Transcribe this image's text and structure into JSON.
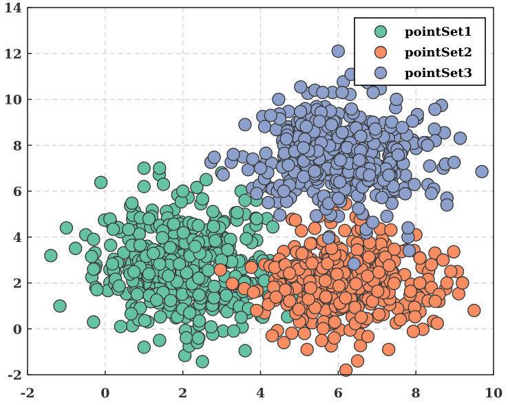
{
  "chart_data": {
    "type": "scatter",
    "xlim": [
      -2,
      10
    ],
    "ylim": [
      -2,
      14
    ],
    "xticks": [
      "-2",
      "0",
      "2",
      "4",
      "6",
      "8",
      "10"
    ],
    "yticks": [
      "-2",
      "0",
      "2",
      "4",
      "6",
      "8",
      "10",
      "12",
      "14"
    ],
    "grid": true,
    "legend_position": "top-right",
    "series": [
      {
        "name": "pointSet1",
        "color": "#66c2a5",
        "distribution": {
          "center": [
            2.0,
            2.7
          ],
          "std": [
            1.1,
            1.35
          ],
          "count": 420
        },
        "points": [
          [
            -1.0,
            4.4
          ],
          [
            -0.5,
            4.1
          ],
          [
            -0.3,
            3.9
          ],
          [
            -0.3,
            2.6
          ],
          [
            -0.3,
            0.3
          ],
          [
            0.4,
            0.1
          ],
          [
            1.0,
            -0.8
          ],
          [
            1.4,
            -0.5
          ],
          [
            1.0,
            7.0
          ],
          [
            1.4,
            7.0
          ],
          [
            1.0,
            6.2
          ],
          [
            1.5,
            6.3
          ],
          [
            2.0,
            6.0
          ],
          [
            2.6,
            6.5
          ],
          [
            3.0,
            6.8
          ],
          [
            3.5,
            6.0
          ],
          [
            3.9,
            4.8
          ],
          [
            3.5,
            0.5
          ],
          [
            4.1,
            2.1
          ],
          [
            2.4,
            -0.4
          ],
          [
            3.6,
            5.6
          ]
        ]
      },
      {
        "name": "pointSet2",
        "color": "#fc8d62",
        "distribution": {
          "center": [
            6.2,
            2.2
          ],
          "std": [
            1.05,
            1.1
          ],
          "count": 420
        },
        "points": [
          [
            6.2,
            -1.8
          ],
          [
            6.5,
            -1.4
          ],
          [
            5.2,
            -0.9
          ],
          [
            7.3,
            -0.9
          ],
          [
            4.6,
            -0.6
          ],
          [
            9.5,
            0.8
          ],
          [
            9.2,
            2.0
          ],
          [
            8.8,
            2.0
          ],
          [
            8.9,
            2.5
          ],
          [
            8.7,
            3.0
          ],
          [
            8.4,
            2.8
          ],
          [
            8.4,
            1.8
          ],
          [
            8.0,
            4.1
          ],
          [
            7.6,
            0.4
          ],
          [
            3.9,
            0.8
          ],
          [
            4.3,
            -0.3
          ],
          [
            5.9,
            -0.4
          ],
          [
            8.6,
            1.5
          ],
          [
            8.5,
            1.2
          ]
        ]
      },
      {
        "name": "pointSet3",
        "color": "#8da0cb",
        "distribution": {
          "center": [
            6.0,
            7.6
          ],
          "std": [
            1.05,
            1.2
          ],
          "count": 420
        },
        "points": [
          [
            6.0,
            12.1
          ],
          [
            5.4,
            10.4
          ],
          [
            6.9,
            10.3
          ],
          [
            7.5,
            10.0
          ],
          [
            3.3,
            7.6
          ],
          [
            3.8,
            7.4
          ],
          [
            3.6,
            8.9
          ],
          [
            4.0,
            7.0
          ],
          [
            3.9,
            5.9
          ],
          [
            8.8,
            5.7
          ],
          [
            8.8,
            5.4
          ],
          [
            8.4,
            5.9
          ],
          [
            8.5,
            8.2
          ],
          [
            8.3,
            8.0
          ],
          [
            7.8,
            4.0
          ],
          [
            7.8,
            4.4
          ],
          [
            5.6,
            10.3
          ],
          [
            6.1,
            10.3
          ],
          [
            4.6,
            6.0
          ],
          [
            4.2,
            5.5
          ]
        ]
      }
    ]
  }
}
